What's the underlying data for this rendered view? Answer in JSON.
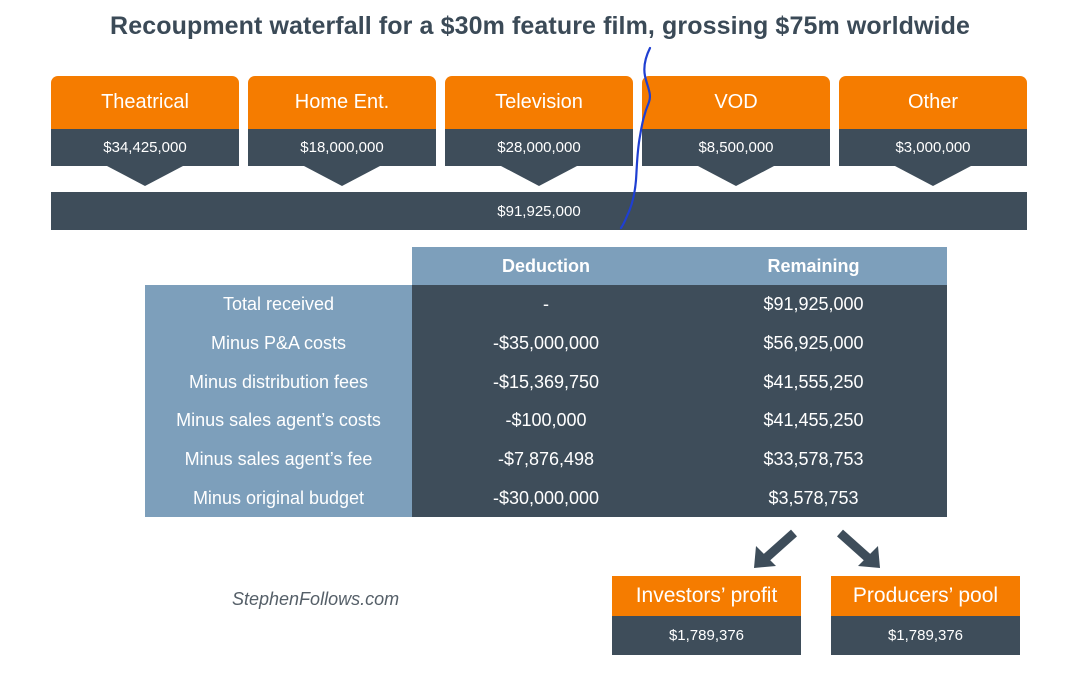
{
  "title": "Recoupment waterfall for a $30m feature film, grossing $75m worldwide",
  "revenue_streams": [
    {
      "label": "Theatrical",
      "value": "$34,425,000"
    },
    {
      "label": "Home Ent.",
      "value": "$18,000,000"
    },
    {
      "label": "Television",
      "value": "$28,000,000"
    },
    {
      "label": "VOD",
      "value": "$8,500,000"
    },
    {
      "label": "Other",
      "value": "$3,000,000"
    }
  ],
  "total": "$91,925,000",
  "table": {
    "headers": {
      "deduction": "Deduction",
      "remaining": "Remaining"
    },
    "rows": [
      {
        "label": "Total received",
        "deduction": "-",
        "remaining": "$91,925,000"
      },
      {
        "label": "Minus P&A costs",
        "deduction": "-$35,000,000",
        "remaining": "$56,925,000"
      },
      {
        "label": "Minus distribution fees",
        "deduction": "-$15,369,750",
        "remaining": "$41,555,250"
      },
      {
        "label": "Minus sales agent’s costs",
        "deduction": "-$100,000",
        "remaining": "$41,455,250"
      },
      {
        "label": "Minus sales agent’s fee",
        "deduction": "-$7,876,498",
        "remaining": "$33,578,753"
      },
      {
        "label": "Minus original budget",
        "deduction": "-$30,000,000",
        "remaining": "$3,578,753"
      }
    ]
  },
  "outputs": [
    {
      "label": "Investors’ profit",
      "value": "$1,789,376"
    },
    {
      "label": "Producers’ pool",
      "value": "$1,789,376"
    }
  ],
  "credit": "StephenFollows.com",
  "colors": {
    "orange": "#f57c00",
    "dark_slate": "#3e4d5a",
    "steel_blue": "#7d9fbb",
    "title_text": "#3b4a57",
    "pen_stroke": "#1f3fd1"
  }
}
